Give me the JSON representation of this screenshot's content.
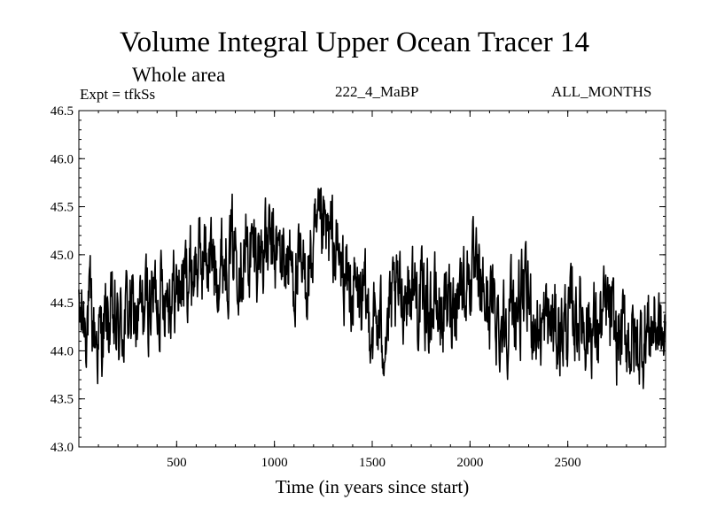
{
  "chart_data": {
    "type": "line",
    "title": "Volume Integral Upper Ocean Tracer 14",
    "subtitle": "Whole area",
    "annotations": {
      "experiment": "Expt = tfkSs",
      "run_label": "222_4_MaBP",
      "months": "ALL_MONTHS"
    },
    "xlabel": "Time (in years since start)",
    "ylabel": "",
    "xlim": [
      0,
      3000
    ],
    "ylim": [
      43.0,
      46.5
    ],
    "x_ticks": [
      500,
      1000,
      1500,
      2000,
      2500
    ],
    "y_ticks": [
      43.0,
      43.5,
      44.0,
      44.5,
      45.0,
      45.5,
      46.0,
      46.5
    ],
    "y_tick_labels": [
      "43.0",
      "43.5",
      "44.0",
      "44.5",
      "45.0",
      "45.5",
      "46.0",
      "46.5"
    ],
    "series": [
      {
        "name": "Upper Ocean Tracer 14",
        "color": "#000000",
        "x": [
          0,
          50,
          100,
          150,
          200,
          250,
          300,
          350,
          400,
          450,
          500,
          550,
          600,
          650,
          700,
          750,
          800,
          850,
          900,
          950,
          1000,
          1050,
          1100,
          1150,
          1200,
          1250,
          1300,
          1350,
          1400,
          1450,
          1500,
          1550,
          1600,
          1650,
          1700,
          1750,
          1800,
          1850,
          1900,
          1950,
          2000,
          2050,
          2100,
          2150,
          2200,
          2250,
          2300,
          2350,
          2400,
          2450,
          2500,
          2550,
          2600,
          2650,
          2700,
          2750,
          2800,
          2850,
          2900,
          2950,
          3000
        ],
        "values": [
          44.3,
          44.4,
          44.1,
          44.3,
          44.2,
          44.4,
          44.3,
          44.5,
          44.6,
          44.7,
          44.6,
          44.8,
          44.9,
          45.0,
          44.9,
          45.0,
          45.1,
          45.0,
          45.0,
          45.1,
          45.0,
          45.0,
          44.8,
          44.7,
          45.0,
          45.2,
          45.1,
          44.8,
          44.6,
          44.5,
          44.3,
          44.2,
          44.4,
          44.6,
          44.7,
          44.5,
          44.5,
          44.4,
          44.5,
          44.7,
          44.8,
          44.6,
          44.5,
          44.3,
          44.4,
          44.5,
          44.5,
          44.2,
          44.3,
          44.2,
          44.3,
          44.4,
          44.3,
          44.2,
          44.4,
          44.1,
          44.2,
          44.0,
          44.2,
          44.3,
          44.0
        ],
        "noise_amplitude": 0.38
      }
    ]
  }
}
